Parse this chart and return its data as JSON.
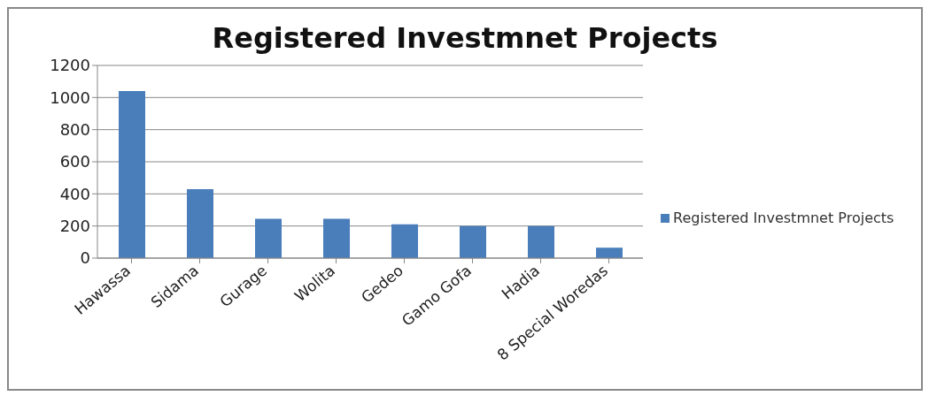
{
  "chart_data": {
    "type": "bar",
    "title": "Registered Investmnet Projects",
    "categories": [
      "Hawassa",
      "Sidama",
      "Gurage",
      "Wolita",
      "Gedeo",
      "Gamo Gofa",
      "Hadia",
      "8 Special Woredas"
    ],
    "series": [
      {
        "name": "Registered Investmnet Projects",
        "color": "#4a7ebb",
        "values": [
          1040,
          430,
          245,
          245,
          210,
          200,
          200,
          65
        ]
      }
    ],
    "ylim": [
      0,
      1200
    ],
    "yticks": [
      0,
      200,
      400,
      600,
      800,
      1000,
      1200
    ],
    "grid": "y",
    "legend": "right"
  }
}
